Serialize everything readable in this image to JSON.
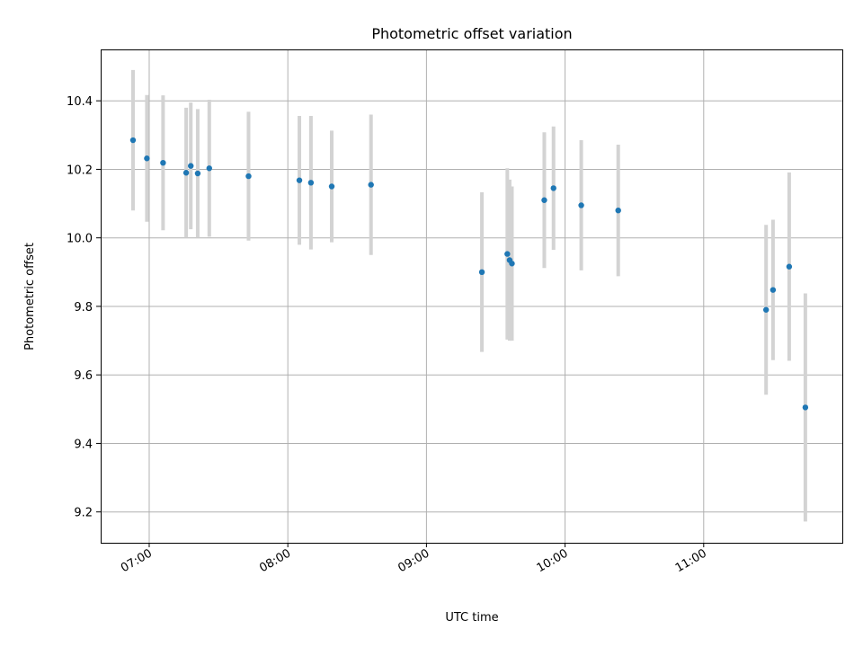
{
  "chart_data": {
    "type": "scatter",
    "title": "Photometric offset variation",
    "xlabel": "UTC time",
    "ylabel": "Photometric offset",
    "x_tick_labels": [
      "07:00",
      "08:00",
      "09:00",
      "10:00",
      "11:00"
    ],
    "y_tick_labels": [
      "9.2",
      "9.4",
      "9.6",
      "9.8",
      "10.0",
      "10.2",
      "10.4"
    ],
    "xlim": [
      "06:39",
      "12:00"
    ],
    "ylim": [
      9.11,
      10.55
    ],
    "grid": true,
    "colors": {
      "points": "#1f77b4",
      "errorbars": "#d3d3d3"
    },
    "series": [
      {
        "x": [
          "06:53",
          "06:59",
          "07:06",
          "07:16",
          "07:18",
          "07:21",
          "07:26",
          "07:43",
          "08:05",
          "08:10",
          "08:19",
          "08:36",
          "09:24",
          "09:35",
          "09:36",
          "09:37",
          "09:51",
          "09:55",
          "10:07",
          "10:23",
          "11:27",
          "11:30",
          "11:37",
          "11:44"
        ],
        "y": [
          10.285,
          10.232,
          10.219,
          10.19,
          10.21,
          10.188,
          10.203,
          10.18,
          10.168,
          10.161,
          10.15,
          10.155,
          9.9,
          9.953,
          9.935,
          9.925,
          10.11,
          10.145,
          10.095,
          10.08,
          9.79,
          9.848,
          9.916,
          9.505
        ],
        "yerr": [
          0.205,
          0.185,
          0.197,
          0.19,
          0.185,
          0.188,
          0.2,
          0.188,
          0.188,
          0.195,
          0.163,
          0.205,
          0.233,
          0.25,
          0.235,
          0.225,
          0.198,
          0.18,
          0.19,
          0.192,
          0.248,
          0.205,
          0.275,
          0.333
        ]
      }
    ]
  }
}
